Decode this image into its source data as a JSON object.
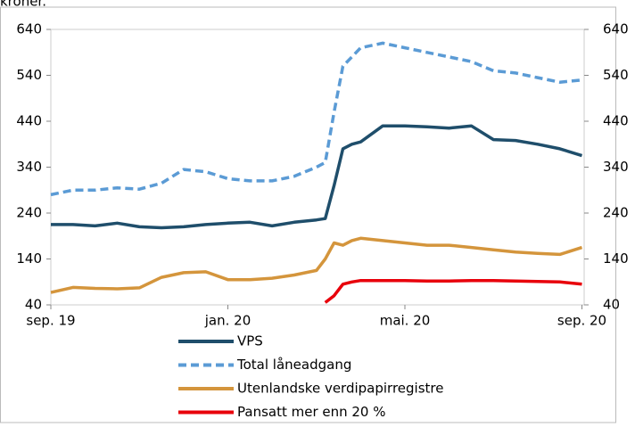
{
  "chart_data": {
    "type": "line",
    "unit_note": "kroner.",
    "x": [
      0,
      0.5,
      1,
      1.5,
      2,
      2.5,
      3,
      3.5,
      4,
      4.5,
      5,
      5.5,
      6,
      6.2,
      6.4,
      6.6,
      6.8,
      7,
      7.5,
      8,
      8.5,
      9,
      9.5,
      10,
      10.5,
      11,
      11.5,
      12
    ],
    "xlim": [
      0,
      12.05
    ],
    "xticks": [
      {
        "value": 0,
        "label": "sep. 19"
      },
      {
        "value": 4,
        "label": "jan. 20"
      },
      {
        "value": 8,
        "label": "mai. 20"
      },
      {
        "value": 12,
        "label": "sep. 20"
      }
    ],
    "ylim": [
      40,
      640
    ],
    "yticks": [
      40,
      140,
      240,
      340,
      440,
      540,
      640
    ],
    "y2lim": [
      40,
      640
    ],
    "y2ticks": [
      40,
      140,
      240,
      340,
      440,
      540,
      640
    ],
    "grid": false,
    "series": [
      {
        "name": "VPS",
        "color": "#1f4e6b",
        "style": "solid",
        "values": [
          215,
          215,
          212,
          218,
          210,
          208,
          210,
          215,
          218,
          220,
          212,
          220,
          225,
          228,
          300,
          380,
          390,
          395,
          430,
          430,
          428,
          425,
          430,
          400,
          398,
          390,
          380,
          365
        ]
      },
      {
        "name": "Total låneadgang",
        "color": "#5b9bd5",
        "style": "dashed",
        "values": [
          280,
          290,
          290,
          295,
          292,
          305,
          335,
          330,
          315,
          310,
          310,
          320,
          340,
          350,
          460,
          560,
          580,
          600,
          610,
          600,
          590,
          580,
          570,
          550,
          545,
          535,
          525,
          530
        ]
      },
      {
        "name": "Utenlandske verdipapirregistre",
        "color": "#d4953c",
        "style": "solid",
        "values": [
          67,
          78,
          76,
          75,
          77,
          100,
          110,
          112,
          95,
          95,
          98,
          105,
          115,
          140,
          175,
          170,
          180,
          185,
          180,
          175,
          170,
          170,
          165,
          160,
          155,
          152,
          150,
          165
        ]
      },
      {
        "name": "Pansatt mer enn 20 %",
        "color": "#e8000b",
        "style": "solid",
        "values": [
          null,
          null,
          null,
          null,
          null,
          null,
          null,
          null,
          null,
          null,
          null,
          null,
          null,
          45,
          60,
          85,
          90,
          93,
          93,
          93,
          92,
          92,
          93,
          93,
          92,
          91,
          90,
          85
        ]
      }
    ]
  }
}
